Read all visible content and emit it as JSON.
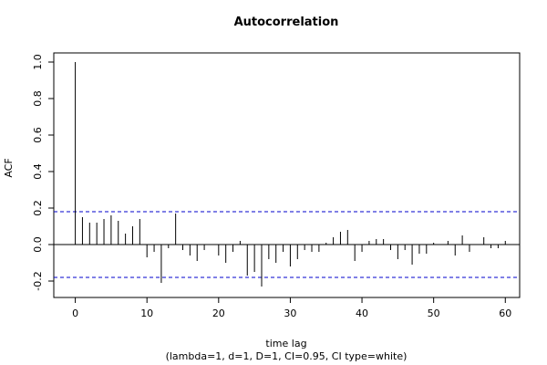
{
  "chart_data": {
    "type": "bar",
    "title": "Autocorrelation",
    "xlabel": "time lag",
    "ylabel": "ACF",
    "subtitle": "(lambda=1, d=1, D=1, CI=0.95, CI type=white)",
    "x": [
      0,
      1,
      2,
      3,
      4,
      5,
      6,
      7,
      8,
      9,
      10,
      11,
      12,
      13,
      14,
      15,
      16,
      17,
      18,
      19,
      20,
      21,
      22,
      23,
      24,
      25,
      26,
      27,
      28,
      29,
      30,
      31,
      32,
      33,
      34,
      35,
      36,
      37,
      38,
      39,
      40,
      41,
      42,
      43,
      44,
      45,
      46,
      47,
      48,
      49,
      50,
      51,
      52,
      53,
      54,
      55,
      56,
      57,
      58,
      59,
      60
    ],
    "values": [
      1.0,
      0.15,
      0.12,
      0.12,
      0.14,
      0.16,
      0.13,
      0.06,
      0.1,
      0.14,
      -0.07,
      -0.04,
      -0.21,
      -0.02,
      0.17,
      -0.03,
      -0.06,
      -0.09,
      -0.03,
      0.0,
      -0.06,
      -0.1,
      -0.04,
      0.02,
      -0.17,
      -0.15,
      -0.23,
      -0.08,
      -0.1,
      -0.04,
      -0.12,
      -0.08,
      -0.03,
      -0.04,
      -0.04,
      0.01,
      0.04,
      0.07,
      0.08,
      -0.09,
      -0.04,
      0.02,
      0.03,
      0.03,
      -0.03,
      -0.08,
      -0.03,
      -0.11,
      -0.05,
      -0.05,
      0.01,
      0.0,
      0.02,
      -0.06,
      0.05,
      -0.04,
      0.0,
      0.04,
      -0.02,
      -0.02,
      0.02
    ],
    "ci": 0.18,
    "xlim": [
      -3,
      62
    ],
    "ylim": [
      -0.29,
      1.05
    ],
    "xticks": [
      0,
      10,
      20,
      30,
      40,
      50,
      60
    ],
    "xtick_labels": [
      "0",
      "10",
      "20",
      "30",
      "40",
      "50",
      "60"
    ],
    "yticks": [
      -0.2,
      0.0,
      0.2,
      0.4,
      0.6,
      0.8,
      1.0
    ],
    "ytick_labels": [
      "-0.2",
      "0.0",
      "0.2",
      "0.4",
      "0.6",
      "0.8",
      "1.0"
    ],
    "ci_color": "#0000cc",
    "bar_color": "#000000"
  }
}
